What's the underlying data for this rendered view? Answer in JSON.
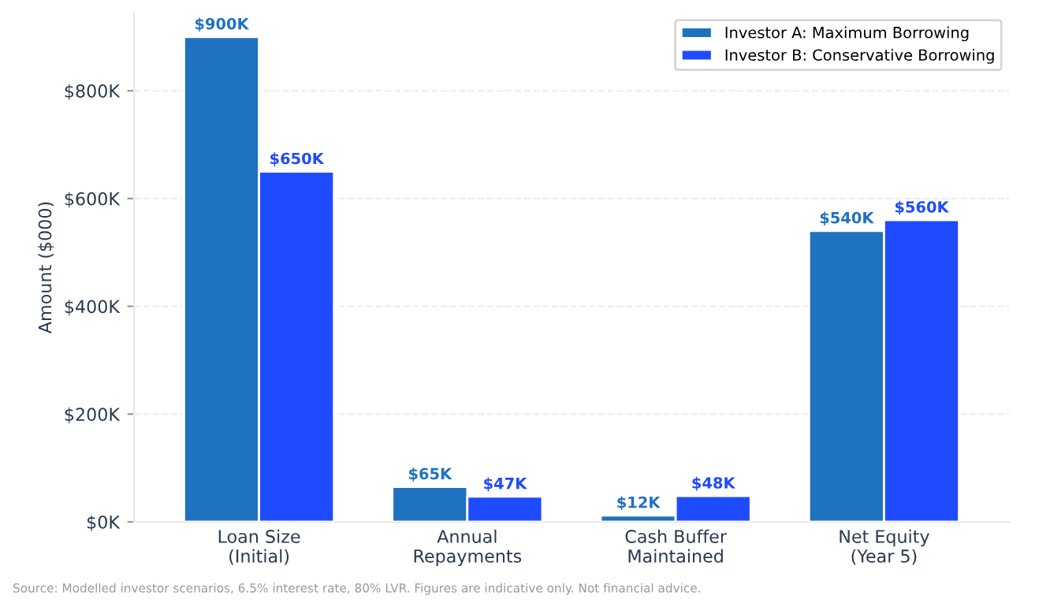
{
  "chart_data": {
    "type": "bar",
    "ylabel": "Amount ($000)",
    "categories": [
      "Loan Size\n(Initial)",
      "Annual\nRepayments",
      "Cash Buffer\nMaintained",
      "Net Equity\n(Year 5)"
    ],
    "series": [
      {
        "name": "Investor A: Maximum Borrowing",
        "color": "#1f72bf",
        "values": [
          900,
          65,
          12,
          540
        ],
        "value_labels": [
          "$900K",
          "$65K",
          "$12K",
          "$540K"
        ]
      },
      {
        "name": "Investor B: Conservative Borrowing",
        "color": "#1f4bff",
        "values": [
          650,
          47,
          48,
          560
        ],
        "value_labels": [
          "$650K",
          "$47K",
          "$48K",
          "$560K"
        ]
      }
    ],
    "ylim": [
      0,
      945
    ],
    "yticks": [
      {
        "value": 0,
        "label": "$0K"
      },
      {
        "value": 200,
        "label": "$200K"
      },
      {
        "value": 400,
        "label": "$400K"
      },
      {
        "value": 600,
        "label": "$600K"
      },
      {
        "value": 800,
        "label": "$800K"
      }
    ],
    "grid": "y",
    "legend": "top right",
    "annotations": [
      "Source: Modelled investor scenarios, 6.5% interest rate, 80% LVR. Figures are indicative only. Not financial advice."
    ]
  }
}
